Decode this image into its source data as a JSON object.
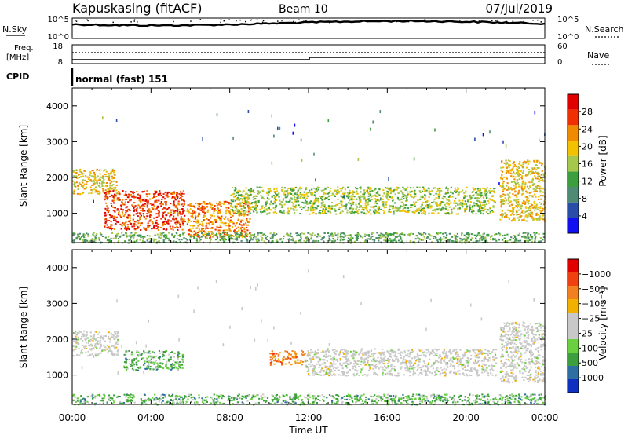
{
  "header": {
    "station": "Kapuskasing (fitACF)",
    "beam": "Beam 10",
    "date": "07/Jul/2019"
  },
  "top_panels": {
    "nsky": {
      "label": "N.Sky",
      "ticks": [
        "10^5",
        "10^0"
      ]
    },
    "nsearch": {
      "label": "N.Search",
      "ticks": [
        "10^5",
        "10^0"
      ]
    },
    "freq": {
      "label_line1": "Freq.",
      "label_line2": "[MHz]",
      "ticks": [
        "18",
        "8"
      ]
    },
    "nave": {
      "label": "Nave",
      "ticks": [
        "60",
        "0"
      ]
    },
    "cpid": {
      "label": "CPID",
      "value": "normal (fast) 151"
    }
  },
  "chart_data": [
    {
      "type": "heatmap",
      "title": "",
      "xlabel": "Time UT",
      "ylabel": "Slant Range [km]",
      "xlim": [
        0,
        24
      ],
      "ylim": [
        180,
        4500
      ],
      "x_ticks": [
        "00:00",
        "04:00",
        "08:00",
        "12:00",
        "16:00",
        "20:00",
        "00:00"
      ],
      "y_ticks": [
        1000,
        2000,
        3000,
        4000
      ],
      "colorbar": {
        "label": "Power [dB]",
        "ticks": [
          "4",
          "8",
          "12",
          "16",
          "20",
          "24",
          "28"
        ],
        "colors": [
          "#1010f0",
          "#2a4ea8",
          "#4f8a74",
          "#3d9e3d",
          "#a6c84a",
          "#f2c200",
          "#f08a00",
          "#f03000",
          "#e00000"
        ]
      },
      "echo_regions": [
        {
          "t": [
            0,
            2.3
          ],
          "range": [
            1550,
            2250
          ],
          "level": 5
        },
        {
          "t": [
            1.6,
            5.7
          ],
          "range": [
            550,
            1650
          ],
          "level": 7
        },
        {
          "t": [
            5.8,
            9.0
          ],
          "range": [
            350,
            1350
          ],
          "level": 6
        },
        {
          "t": [
            8.0,
            21.5
          ],
          "range": [
            1000,
            1750
          ],
          "level": 4
        },
        {
          "t": [
            21.7,
            24
          ],
          "range": [
            800,
            2500
          ],
          "level": 5
        },
        {
          "t": [
            0,
            24
          ],
          "range": [
            190,
            480
          ],
          "level": 3
        }
      ]
    },
    {
      "type": "heatmap",
      "title": "",
      "xlabel": "Time UT",
      "ylabel": "Slant Range [km]",
      "xlim": [
        0,
        24
      ],
      "ylim": [
        180,
        4500
      ],
      "x_ticks": [
        "00:00",
        "04:00",
        "08:00",
        "12:00",
        "16:00",
        "20:00",
        "00:00"
      ],
      "y_ticks": [
        1000,
        2000,
        3000,
        4000
      ],
      "colorbar": {
        "label": "Velocity [m s⁻¹]",
        "ticks": [
          "1000",
          "500",
          "100",
          "25",
          "−25",
          "−100",
          "−500",
          "−1000"
        ],
        "colors": [
          "#1030c0",
          "#2f6ea0",
          "#3d9e3d",
          "#6ad040",
          "#c8c8c8",
          "#c8c8c8",
          "#f2b000",
          "#f08020",
          "#f04010",
          "#e00000"
        ]
      },
      "echo_regions": [
        {
          "t": [
            0,
            2.3
          ],
          "range": [
            1550,
            2250
          ],
          "velocity": "low"
        },
        {
          "t": [
            2.6,
            5.6
          ],
          "range": [
            1150,
            1700
          ],
          "velocity": "positive"
        },
        {
          "t": [
            10.0,
            11.8
          ],
          "range": [
            1300,
            1700
          ],
          "velocity": "negative"
        },
        {
          "t": [
            11.8,
            21.5
          ],
          "range": [
            1000,
            1750
          ],
          "velocity": "low"
        },
        {
          "t": [
            21.7,
            24
          ],
          "range": [
            800,
            2500
          ],
          "velocity": "low"
        },
        {
          "t": [
            0,
            24
          ],
          "range": [
            190,
            480
          ],
          "velocity": "positive"
        }
      ]
    }
  ]
}
